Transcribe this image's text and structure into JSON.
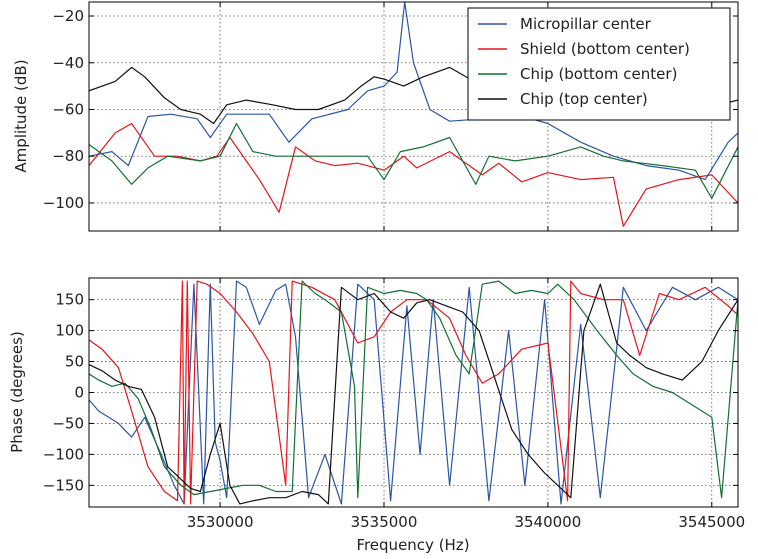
{
  "chart_data": {
    "type": "line",
    "xlabel": "Frequency (Hz)",
    "xlim": [
      3526000,
      3545800
    ],
    "xticks": [
      3530000,
      3535000,
      3540000,
      3545000
    ],
    "xticklabels": [
      "3530000",
      "3535000",
      "3540000",
      "3545000"
    ],
    "legend_position": "top-right",
    "grid": true,
    "colors": {
      "Micropillar center": "#2b55a8",
      "Shield (bottom center)": "#e8151b",
      "Chip (bottom center)": "#127032",
      "Chip (top center)": "#111111"
    },
    "panels": [
      {
        "id": "amplitude",
        "ylabel": "Amplitude (dB)",
        "ylim": [
          -112,
          -14
        ],
        "yticks": [
          -20,
          -40,
          -60,
          -80,
          -100
        ],
        "yticklabels": [
          "−20",
          "−40",
          "−60",
          "−80",
          "−100"
        ],
        "series": [
          {
            "name": "Micropillar center",
            "x": [
              3526000,
              3526700,
              3527200,
              3527800,
              3528500,
              3529300,
              3529700,
              3530200,
              3531500,
              3532100,
              3532800,
              3533900,
              3534500,
              3535000,
              3535400,
              3535630,
              3535900,
              3536400,
              3537000,
              3538000,
              3539000,
              3540000,
              3541000,
              3542000,
              3543000,
              3544000,
              3544800,
              3545500,
              3545800
            ],
            "y": [
              -80,
              -78,
              -84,
              -63,
              -62,
              -64,
              -72,
              -62,
              -62,
              -74,
              -64,
              -60,
              -52,
              -50,
              -44,
              -14,
              -40,
              -60,
              -65,
              -64,
              -62,
              -66,
              -74,
              -80,
              -84,
              -86,
              -90,
              -74,
              -70
            ]
          },
          {
            "name": "Shield (bottom center)",
            "x": [
              3526000,
              3526800,
              3527300,
              3528000,
              3528700,
              3529400,
              3529900,
              3530300,
              3531200,
              3531800,
              3532300,
              3532900,
              3533500,
              3534200,
              3535000,
              3535600,
              3536000,
              3537000,
              3538000,
              3538500,
              3539200,
              3540000,
              3541000,
              3542000,
              3542300,
              3543000,
              3544000,
              3545000,
              3545800
            ],
            "y": [
              -84,
              -70,
              -66,
              -80,
              -80,
              -82,
              -80,
              -72,
              -90,
              -104,
              -76,
              -82,
              -84,
              -83,
              -86,
              -80,
              -85,
              -78,
              -88,
              -83,
              -91,
              -87,
              -90,
              -89,
              -110,
              -94,
              -90,
              -88,
              -100
            ]
          },
          {
            "name": "Chip (bottom center)",
            "x": [
              3526000,
              3526700,
              3527300,
              3527800,
              3528400,
              3529400,
              3530000,
              3530500,
              3531000,
              3531700,
              3532200,
              3533000,
              3534000,
              3534500,
              3535000,
              3535500,
              3536200,
              3537000,
              3537800,
              3538200,
              3539000,
              3540000,
              3541000,
              3541700,
              3542300,
              3543500,
              3544500,
              3545000,
              3545800
            ],
            "y": [
              -75,
              -82,
              -92,
              -85,
              -80,
              -82,
              -80,
              -66,
              -78,
              -80,
              -80,
              -80,
              -80,
              -80,
              -90,
              -78,
              -76,
              -72,
              -92,
              -80,
              -82,
              -80,
              -76,
              -80,
              -82,
              -84,
              -86,
              -98,
              -76
            ]
          },
          {
            "name": "Chip (top center)",
            "x": [
              3526000,
              3526800,
              3527300,
              3527700,
              3528300,
              3528800,
              3529400,
              3529800,
              3530200,
              3530800,
              3531600,
              3532300,
              3533000,
              3533800,
              3534300,
              3534700,
              3535000,
              3535600,
              3536200,
              3537000,
              3538000,
              3539000,
              3540000,
              3541000,
              3542000,
              3542800,
              3543500,
              3544500,
              3545200,
              3545800
            ],
            "y": [
              -52,
              -48,
              -42,
              -46,
              -55,
              -60,
              -62,
              -66,
              -58,
              -56,
              -58,
              -60,
              -60,
              -56,
              -50,
              -46,
              -47,
              -50,
              -46,
              -42,
              -50,
              -56,
              -50,
              -46,
              -44,
              -50,
              -52,
              -56,
              -58,
              -56
            ]
          }
        ]
      },
      {
        "id": "phase",
        "ylabel": "Phase (degrees)",
        "ylim": [
          -185,
          185
        ],
        "yticks": [
          150,
          100,
          50,
          0,
          -50,
          -100,
          -150
        ],
        "yticklabels": [
          "150",
          "100",
          "50",
          "0",
          "−50",
          "−100",
          "−150"
        ],
        "series": [
          {
            "name": "Micropillar center",
            "x": [
              3526000,
              3526300,
              3526900,
              3527300,
              3527700,
              3528200,
              3528600,
              3528900,
              3529200,
              3529500,
              3529700,
              3529850,
              3530000,
              3530200,
              3530500,
              3530800,
              3531200,
              3531700,
              3532000,
              3532300,
              3532700,
              3533200,
              3533700,
              3534200,
              3534700,
              3535200,
              3535700,
              3536100,
              3536500,
              3537000,
              3537600,
              3538200,
              3538800,
              3539300,
              3539900,
              3540400,
              3541000,
              3541600,
              3542300,
              3543000,
              3543800,
              3544500,
              3545200,
              3545800
            ],
            "y": [
              -12,
              -30,
              -50,
              -72,
              -40,
              -100,
              -150,
              -180,
              175,
              -180,
              175,
              -80,
              -110,
              -170,
              180,
              170,
              110,
              165,
              175,
              90,
              -170,
              -100,
              -180,
              175,
              150,
              -175,
              140,
              -100,
              150,
              -150,
              170,
              -175,
              100,
              -150,
              150,
              -180,
              110,
              -170,
              170,
              100,
              170,
              150,
              170,
              150
            ]
          },
          {
            "name": "Shield (bottom center)",
            "x": [
              3526000,
              3526400,
              3526900,
              3527300,
              3527800,
              3528300,
              3528700,
              3528850,
              3528900,
              3529000,
              3529100,
              3529300,
              3529600,
              3530000,
              3530500,
              3531000,
              3531500,
              3532000,
              3532200,
              3532800,
              3533500,
              3534200,
              3534700,
              3535200,
              3535700,
              3536300,
              3537000,
              3537500,
              3538000,
              3538500,
              3539200,
              3540000,
              3540600,
              3540700,
              3541000,
              3541700,
              3542300,
              3542800,
              3543400,
              3544000,
              3544800,
              3545500,
              3545800
            ],
            "y": [
              85,
              70,
              40,
              -30,
              -120,
              -160,
              -175,
              180,
              -180,
              180,
              -180,
              180,
              175,
              160,
              130,
              95,
              50,
              -150,
              180,
              170,
              150,
              80,
              90,
              130,
              150,
              150,
              120,
              60,
              15,
              30,
              70,
              80,
              -175,
              180,
              160,
              150,
              150,
              60,
              160,
              150,
              170,
              140,
              125
            ]
          },
          {
            "name": "Chip (bottom center)",
            "x": [
              3526000,
              3526300,
              3526700,
              3527100,
              3527500,
              3527900,
              3528300,
              3528800,
              3529200,
              3529700,
              3530200,
              3530700,
              3531200,
              3531700,
              3532200,
              3532500,
              3532900,
              3533200,
              3533700,
              3534100,
              3534200,
              3534500,
              3535000,
              3535500,
              3536000,
              3536300,
              3536700,
              3537200,
              3537600,
              3538000,
              3538500,
              3539000,
              3539500,
              3540000,
              3540300,
              3540800,
              3541500,
              3542100,
              3542600,
              3543200,
              3543800,
              3544400,
              3545000,
              3545300,
              3545800
            ],
            "y": [
              30,
              20,
              10,
              15,
              -10,
              -60,
              -120,
              -150,
              -165,
              -160,
              -155,
              -150,
              -150,
              -160,
              -160,
              180,
              160,
              150,
              130,
              10,
              -170,
              170,
              160,
              165,
              160,
              150,
              120,
              60,
              30,
              175,
              180,
              160,
              165,
              160,
              175,
              150,
              100,
              60,
              30,
              10,
              0,
              -20,
              -40,
              -170,
              150
            ]
          },
          {
            "name": "Chip (top center)",
            "x": [
              3526000,
              3526400,
              3526800,
              3527200,
              3527600,
              3528000,
              3528400,
              3528800,
              3529100,
              3529400,
              3529700,
              3530000,
              3530300,
              3530600,
              3531000,
              3531500,
              3532000,
              3532500,
              3533000,
              3533300,
              3533700,
              3534200,
              3534700,
              3535200,
              3535600,
              3536000,
              3536400,
              3536900,
              3537400,
              3537900,
              3538400,
              3538900,
              3539400,
              3539900,
              3540300,
              3540700,
              3541100,
              3541600,
              3542100,
              3542500,
              3543000,
              3543500,
              3544100,
              3544700,
              3545200,
              3545800
            ],
            "y": [
              45,
              35,
              20,
              10,
              5,
              -40,
              -120,
              -140,
              -155,
              -160,
              -100,
              -50,
              -150,
              -180,
              -175,
              -170,
              -170,
              -160,
              -165,
              -180,
              170,
              150,
              160,
              130,
              120,
              145,
              150,
              140,
              130,
              100,
              20,
              -60,
              -100,
              -130,
              -150,
              -170,
              100,
              175,
              80,
              60,
              40,
              30,
              20,
              50,
              100,
              150
            ]
          }
        ]
      }
    ]
  }
}
